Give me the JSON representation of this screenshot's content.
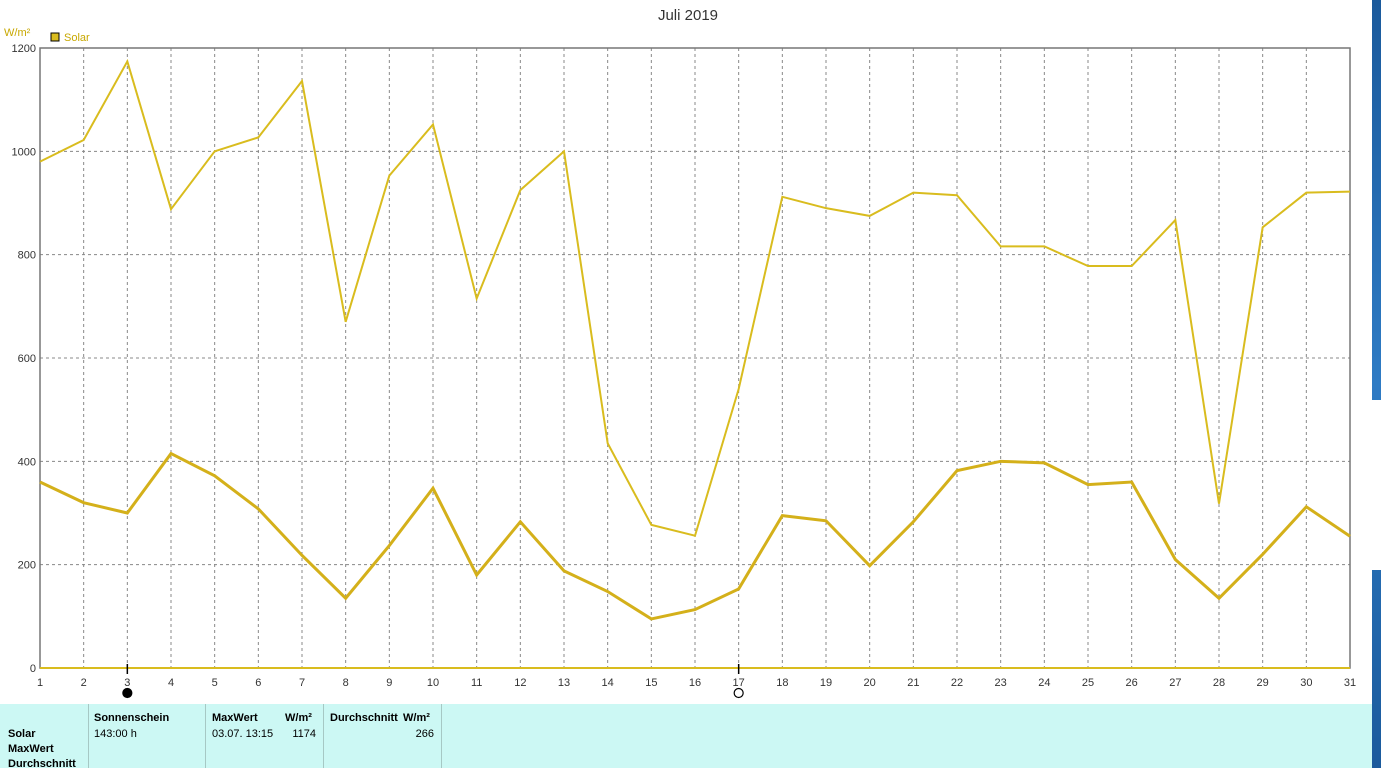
{
  "chart_data": {
    "type": "line",
    "title": "Juli 2019",
    "ylabel": "W/m²",
    "xlabel": "",
    "ylim": [
      0,
      1200
    ],
    "xlim": [
      1,
      31
    ],
    "yticks": [
      0,
      200,
      400,
      600,
      800,
      1000,
      1200
    ],
    "x": [
      1,
      2,
      3,
      4,
      5,
      6,
      7,
      8,
      9,
      10,
      11,
      12,
      13,
      14,
      15,
      16,
      17,
      18,
      19,
      20,
      21,
      22,
      23,
      24,
      25,
      26,
      27,
      28,
      29,
      30,
      31
    ],
    "grid": true,
    "legend": "top-left",
    "series": [
      {
        "name": "Solar",
        "role": "max",
        "color": "#d9bc1e",
        "values": [
          980,
          1022,
          1174,
          888,
          1000,
          1027,
          1136,
          670,
          953,
          1052,
          715,
          925,
          1000,
          435,
          277,
          256,
          540,
          912,
          890,
          875,
          920,
          915,
          816,
          816,
          778,
          778,
          867,
          318,
          853,
          920,
          922
        ]
      },
      {
        "name": "Solar",
        "role": "average",
        "color": "#d4b01a",
        "values": [
          360,
          320,
          300,
          415,
          372,
          308,
          218,
          135,
          237,
          348,
          180,
          283,
          188,
          148,
          95,
          113,
          153,
          295,
          285,
          198,
          283,
          382,
          400,
          397,
          355,
          360,
          210,
          135,
          220,
          312,
          255
        ]
      }
    ],
    "moon_phases": [
      {
        "day": 3,
        "phase": "new-moon"
      },
      {
        "day": 17,
        "phase": "full-moon"
      }
    ]
  },
  "stats": {
    "row_labels": [
      "Solar",
      "MaxWert",
      "Durchschnitt"
    ],
    "sonnenschein_header": "Sonnenschein",
    "sonnenschein_value": "143:00 h",
    "maxwert_header": "MaxWert",
    "maxwert_unit": "W/m²",
    "maxwert_date": "03.07.  13:15",
    "maxwert_value": "1174",
    "avg_header": "Durchschnitt",
    "avg_unit": "W/m²",
    "avg_value": "266"
  },
  "colors": {
    "panel_bg": "#ccf8f4",
    "series": "#d9bc1e",
    "grid": "#888888"
  }
}
